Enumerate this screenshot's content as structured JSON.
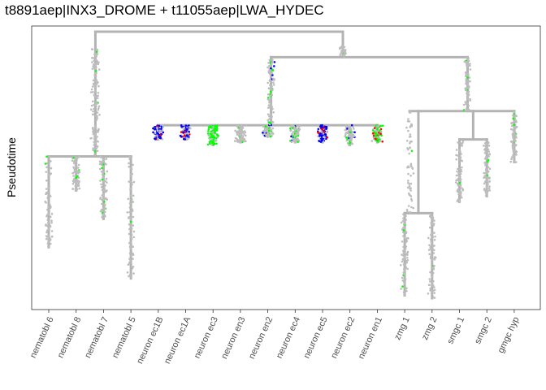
{
  "chart_data": {
    "type": "scatter",
    "subtype": "pseudotime-lineage-tree",
    "title": "t8891aep|INX3_DROME + t11055aep|LWA_HYDEC",
    "xlabel": "",
    "ylabel": "Pseudotime",
    "y_ticks_shown": false,
    "grid": false,
    "legend": "none",
    "categories": [
      "nematobl 6",
      "nematobl 8",
      "nematobl 7",
      "nematobl 5",
      "neuron ec1B",
      "neuron ec1A",
      "neuron ec3",
      "neuron en3",
      "neuron en2",
      "neuron ec4",
      "neuron ec5",
      "neuron ec2",
      "neuron en1",
      "zmg 1",
      "zmg 2",
      "smgc 1",
      "smgc 2",
      "gmgc hyp"
    ],
    "ylim": [
      0,
      1
    ],
    "colors": {
      "branch": "#b3b3b3",
      "cell_default": "#bdbdbd",
      "expr_inx3": "#00ff00",
      "expr_lwa": "#0000ff",
      "expr_both": "#ff0000"
    },
    "tree": {
      "root": {
        "y": 0.98,
        "children": [
          "nematoblast-node",
          "main-node"
        ]
      },
      "nematoblast-node": {
        "y": 0.54,
        "range_top": 0.92,
        "members": [
          "nematobl 6",
          "nematobl 8",
          "nematobl 7",
          "nematobl 5"
        ]
      },
      "main-node": {
        "y": 0.89,
        "range_top": 0.93
      },
      "neuron-node": {
        "y": 0.65,
        "range_top": 0.89,
        "members": [
          "neuron ec1B",
          "neuron ec1A",
          "neuron ec3",
          "neuron en3",
          "neuron en2",
          "neuron ec4",
          "neuron ec5",
          "neuron ec2",
          "neuron en1"
        ]
      },
      "glia-node": {
        "y": 0.7,
        "range_top": 0.89
      },
      "zmg-node": {
        "y": 0.34,
        "members": [
          "zmg 1",
          "zmg 2"
        ]
      },
      "smgc-node": {
        "y": 0.6,
        "members": [
          "smgc 1",
          "smgc 2"
        ]
      }
    },
    "leaves": [
      {
        "name": "nematobl 6",
        "y_top": 0.54,
        "y_bottom": 0.22,
        "expression": "low"
      },
      {
        "name": "nematobl 8",
        "y_top": 0.54,
        "y_bottom": 0.42,
        "expression": "low"
      },
      {
        "name": "nematobl 7",
        "y_top": 0.54,
        "y_bottom": 0.32,
        "expression": "low"
      },
      {
        "name": "nematobl 5",
        "y_top": 0.54,
        "y_bottom": 0.11,
        "expression": "low"
      },
      {
        "name": "neuron ec1B",
        "y_top": 0.65,
        "y_bottom": 0.6,
        "expression": "lwa-high"
      },
      {
        "name": "neuron ec1A",
        "y_top": 0.65,
        "y_bottom": 0.6,
        "expression": "lwa-high"
      },
      {
        "name": "neuron ec3",
        "y_top": 0.65,
        "y_bottom": 0.58,
        "expression": "inx3-high"
      },
      {
        "name": "neuron en3",
        "y_top": 0.65,
        "y_bottom": 0.59,
        "expression": "low"
      },
      {
        "name": "neuron en2",
        "y_top": 0.65,
        "y_bottom": 0.61,
        "expression": "mixed"
      },
      {
        "name": "neuron ec4",
        "y_top": 0.65,
        "y_bottom": 0.59,
        "expression": "mixed"
      },
      {
        "name": "neuron ec5",
        "y_top": 0.65,
        "y_bottom": 0.59,
        "expression": "lwa-high"
      },
      {
        "name": "neuron ec2",
        "y_top": 0.65,
        "y_bottom": 0.58,
        "expression": "mixed"
      },
      {
        "name": "neuron en1",
        "y_top": 0.65,
        "y_bottom": 0.59,
        "expression": "both-high"
      },
      {
        "name": "zmg 1",
        "y_top": 0.34,
        "y_bottom": 0.05,
        "expression": "low"
      },
      {
        "name": "zmg 2",
        "y_top": 0.34,
        "y_bottom": 0.04,
        "expression": "low"
      },
      {
        "name": "smgc 1",
        "y_top": 0.6,
        "y_bottom": 0.38,
        "expression": "low"
      },
      {
        "name": "smgc 2",
        "y_top": 0.6,
        "y_bottom": 0.4,
        "expression": "low"
      },
      {
        "name": "gmgc hyp",
        "y_top": 0.7,
        "y_bottom": 0.52,
        "expression": "low"
      }
    ]
  }
}
